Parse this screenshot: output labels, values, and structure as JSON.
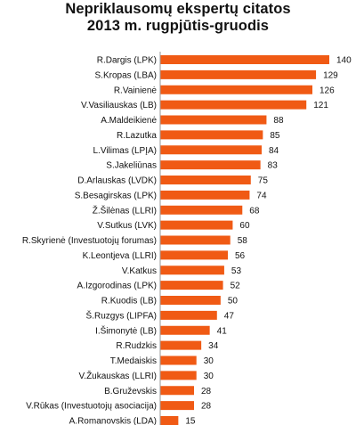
{
  "chart_data": {
    "type": "bar",
    "orientation": "horizontal",
    "title_lines": [
      "Nepriklausomų ekspertų citatos",
      "2013 m. rugpjūtis-gruodis"
    ],
    "xlabel": "",
    "ylabel": "",
    "grid": false,
    "legend": "none",
    "value_labels": true,
    "bar_color": "#F05A14",
    "xlim": [
      0,
      140
    ],
    "categories": [
      "R.Dargis (LPK)",
      "S.Kropas (LBA)",
      "R.Vainienė",
      "V.Vasiliauskas (LB)",
      "A.Maldeikienė",
      "R.Lazutka",
      "L.Vilimas (LPĮA)",
      "S.Jakeliūnas",
      "D.Arlauskas (LVDK)",
      "S.Besagirskas (LPK)",
      "Ž.Šilėnas (LLRI)",
      "V.Sutkus (LVK)",
      "R.Skyrienė (Investuotojų forumas)",
      "K.Leontjeva (LLRI)",
      "V.Katkus",
      "A.Izgorodinas (LPK)",
      "R.Kuodis (LB)",
      "Š.Ruzgys (LIPFA)",
      "I.Šimonytė (LB)",
      "R.Rudzkis",
      "T.Medaiskis",
      "V.Žukauskas (LLRI)",
      "B.Gruževskis",
      "V.Rūkas (Investuotojų asociacija)",
      "A.Romanovskis (LDA)"
    ],
    "values": [
      140,
      129,
      126,
      121,
      88,
      85,
      84,
      83,
      75,
      74,
      68,
      60,
      58,
      56,
      53,
      52,
      50,
      47,
      41,
      34,
      30,
      30,
      28,
      28,
      15
    ]
  }
}
